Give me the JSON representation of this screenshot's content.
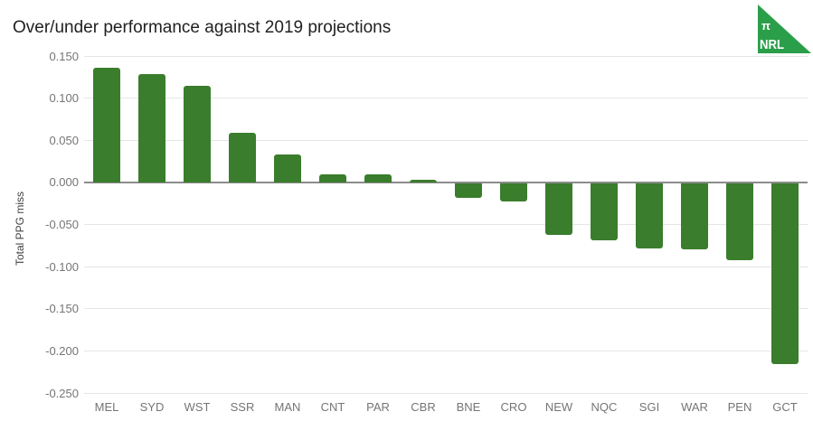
{
  "header": {
    "title": "Over/under performance against 2019 projections",
    "logo": {
      "pi_symbol": "π",
      "brand": "NRL",
      "background_color": "#2b9e4a",
      "text_color": "#ffffff"
    }
  },
  "chart_data": {
    "type": "bar",
    "title": "Over/under performance against 2019 projections",
    "xlabel": "",
    "ylabel": "Total PPG miss",
    "categories": [
      "MEL",
      "SYD",
      "WST",
      "SSR",
      "MAN",
      "CNT",
      "PAR",
      "CBR",
      "BNE",
      "CRO",
      "NEW",
      "NQC",
      "SGI",
      "WAR",
      "PEN",
      "GCT"
    ],
    "values": [
      0.136,
      0.129,
      0.115,
      0.059,
      0.033,
      0.009,
      0.01,
      0.003,
      -0.018,
      -0.023,
      -0.062,
      -0.069,
      -0.078,
      -0.079,
      -0.092,
      -0.216
    ],
    "ylim": [
      -0.25,
      0.15
    ],
    "ytick_values": [
      0.15,
      0.1,
      0.05,
      0.0,
      -0.05,
      -0.1,
      -0.15,
      -0.2,
      -0.25
    ],
    "ytick_labels": [
      "0.150",
      "0.100",
      "0.050",
      "0.000",
      "-0.050",
      "-0.100",
      "-0.150",
      "-0.200",
      "-0.250"
    ],
    "grid": true,
    "legend_position": "none",
    "bar_color": "#3a7d2c",
    "gridline_color": "#e6e6e6",
    "zero_line_color": "#8c8c8c",
    "tick_text_color": "#757575"
  }
}
